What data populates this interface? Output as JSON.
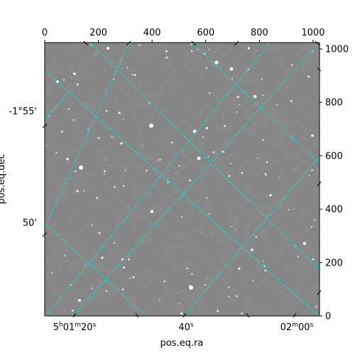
{
  "chart_data": {
    "type": "image",
    "xlabel": "pos.eq.ra",
    "ylabel": "pos.eq.dec",
    "x_pixel_axis": {
      "range": [
        0,
        1024
      ],
      "ticks": [
        0,
        200,
        400,
        600,
        800,
        1000
      ]
    },
    "y_pixel_axis": {
      "range": [
        0,
        1024
      ],
      "ticks": [
        0,
        200,
        400,
        600,
        800,
        1000
      ]
    },
    "ra_tick_labels": [
      "5h01m20s",
      "40s",
      "02m00s"
    ],
    "dec_tick_labels": [
      "-1°55'",
      "50'"
    ],
    "grid": true,
    "grid_color": "#00e5e5",
    "image_colormap": "gray"
  }
}
